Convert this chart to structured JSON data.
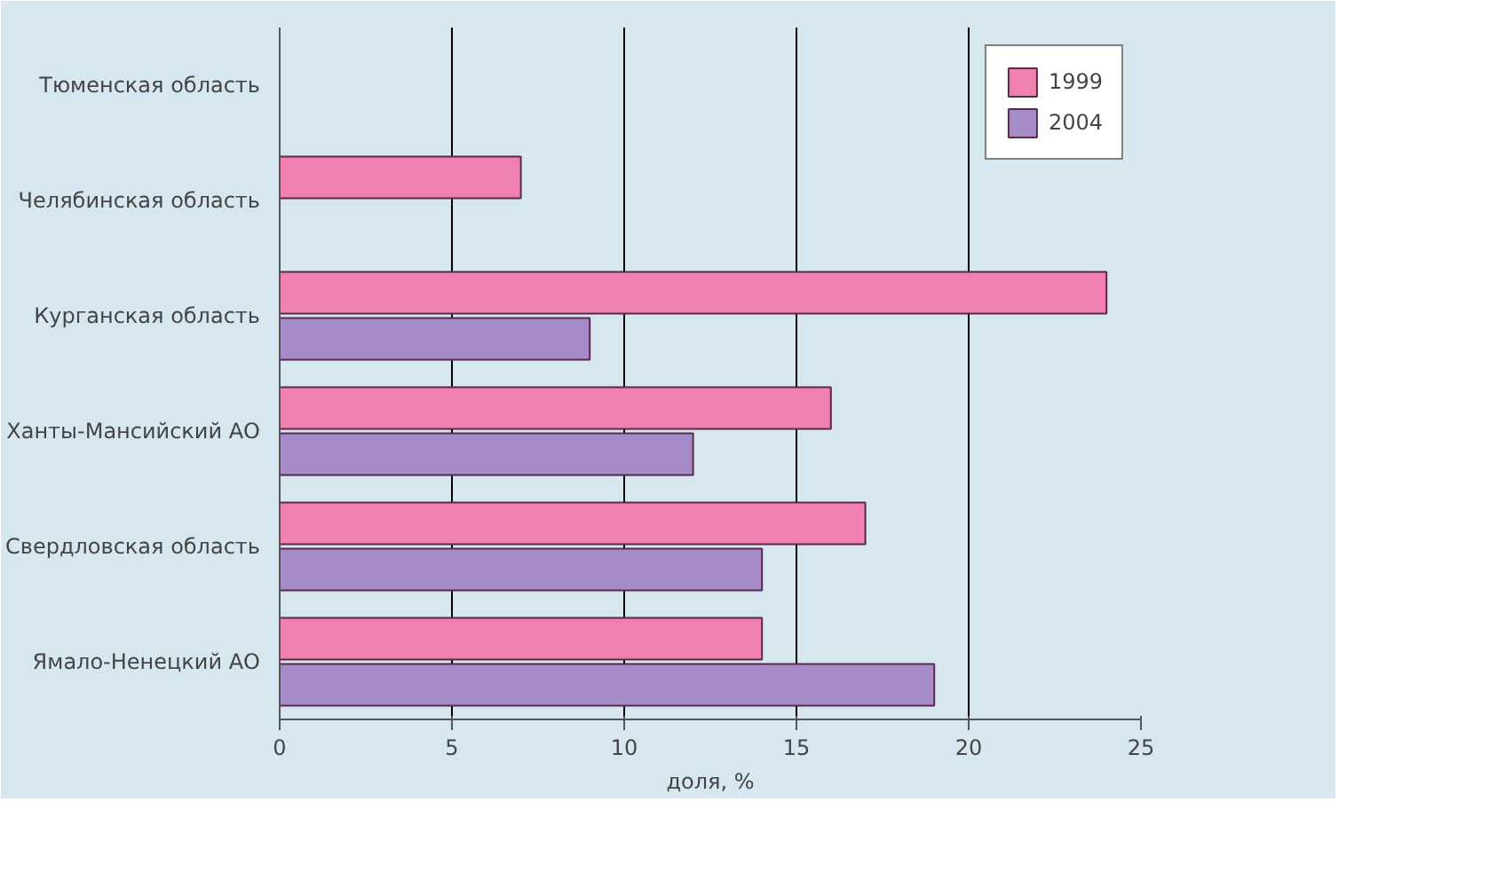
{
  "chart_data": {
    "type": "bar",
    "orientation": "horizontal",
    "xlabel": "доля, %",
    "categories": [
      "Тюменская область",
      "Челябинская область",
      "Курганская область",
      "Ханты-Мансийский АО",
      "Свердловская область",
      "Ямало-Ненецкий АО"
    ],
    "series": [
      {
        "name": "1999",
        "color": "#f080b0",
        "values": [
          null,
          7,
          24,
          16,
          17,
          14
        ]
      },
      {
        "name": "2004",
        "color": "#a58cc8",
        "values": [
          null,
          null,
          9,
          12,
          14,
          19
        ]
      }
    ],
    "xlim": [
      0,
      25
    ],
    "xticks": [
      0,
      5,
      10,
      15,
      20,
      25
    ],
    "grid": "x",
    "legend": "top right"
  }
}
